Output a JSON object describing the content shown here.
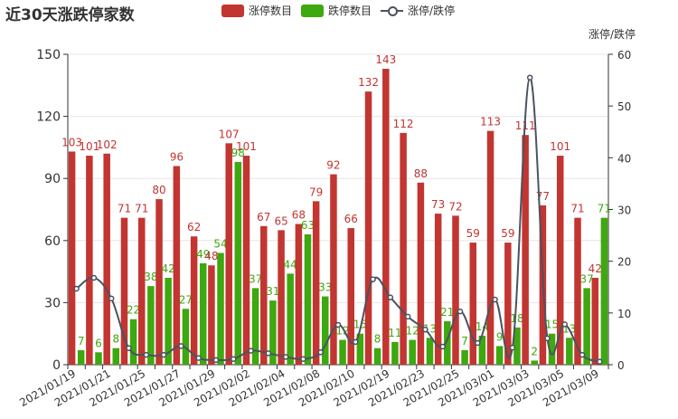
{
  "chart_data": {
    "type": "bar",
    "title": "近30天涨跌停家数",
    "right_axis_name": "涨停/跌停",
    "categories": [
      "2021/01/19",
      "2021/01/20",
      "2021/01/21",
      "2021/01/22",
      "2021/01/25",
      "2021/01/26",
      "2021/01/27",
      "2021/01/28",
      "2021/01/29",
      "2021/02/01",
      "2021/02/02",
      "2021/02/03",
      "2021/02/04",
      "2021/02/05",
      "2021/02/08",
      "2021/02/09",
      "2021/02/10",
      "2021/02/18",
      "2021/02/19",
      "2021/02/22",
      "2021/02/23",
      "2021/02/24",
      "2021/02/25",
      "2021/02/26",
      "2021/03/01",
      "2021/03/02",
      "2021/03/03",
      "2021/03/04",
      "2021/03/05",
      "2021/03/08",
      "2021/03/09"
    ],
    "x_tick_labels": [
      "2021/01/19",
      "2021/01/21",
      "2021/01/25",
      "2021/01/27",
      "2021/01/29",
      "2021/02/02",
      "2021/02/04",
      "2021/02/08",
      "2021/02/10",
      "2021/02/19",
      "2021/02/23",
      "2021/02/25",
      "2021/03/01",
      "2021/03/03",
      "2021/03/05",
      "2021/03/09"
    ],
    "series": [
      {
        "name": "涨停数目",
        "type": "bar",
        "axis": "left",
        "color": "#c23531",
        "values": [
          103,
          101,
          102,
          71,
          71,
          80,
          96,
          62,
          48,
          107,
          101,
          67,
          65,
          68,
          79,
          92,
          66,
          132,
          143,
          112,
          88,
          73,
          72,
          59,
          113,
          59,
          111,
          77,
          101,
          71,
          42
        ]
      },
      {
        "name": "跌停数目",
        "type": "bar",
        "axis": "left",
        "color": "#3da80f",
        "values": [
          7,
          6,
          8,
          22,
          38,
          42,
          27,
          49,
          54,
          98,
          37,
          31,
          44,
          63,
          33,
          12,
          15,
          8,
          11,
          12,
          13,
          21,
          7,
          14,
          9,
          18,
          2,
          15,
          13,
          37,
          71
        ]
      },
      {
        "name": "涨停/跌停",
        "type": "line",
        "axis": "right",
        "color": "#4a5360",
        "values": [
          14.7,
          16.8,
          12.8,
          3.2,
          1.9,
          1.9,
          3.6,
          1.3,
          0.9,
          1.1,
          2.7,
          2.2,
          1.5,
          1.1,
          2.4,
          7.7,
          4.4,
          16.5,
          13.0,
          9.3,
          6.8,
          3.5,
          10.3,
          4.2,
          12.6,
          3.3,
          55.5,
          5.1,
          7.8,
          1.9,
          0.6
        ]
      }
    ],
    "ylim_left": [
      0,
      150
    ],
    "yticks_left": [
      0,
      30,
      60,
      90,
      120,
      150
    ],
    "ylim_right": [
      0,
      60
    ],
    "yticks_right": [
      0,
      10,
      20,
      30,
      40,
      50,
      60
    ],
    "grid": true,
    "legend_position": "top-center"
  },
  "legend_items": [
    {
      "label": "涨停数目",
      "color": "#c23531"
    },
    {
      "label": "跌停数目",
      "color": "#3da80f"
    },
    {
      "label": "涨停/跌停"
    }
  ]
}
